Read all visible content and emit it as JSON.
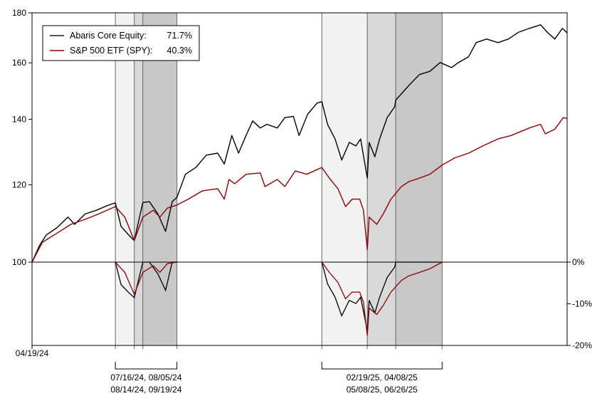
{
  "chart_data": {
    "type": "line",
    "y_scale": "log",
    "ylim": [
      100,
      180
    ],
    "yticks": [
      "100",
      "120",
      "140",
      "160",
      "180"
    ],
    "ytick_values": [
      100,
      120,
      140,
      160,
      180
    ],
    "y2lim": [
      -20,
      0
    ],
    "y2ticks": [
      "0%",
      "-10%",
      "-20%"
    ],
    "y2tick_values": [
      0,
      -10,
      -20
    ],
    "xlim": [
      "2024-04-19",
      "2025-11-05"
    ],
    "xtick_label": "04/19/24",
    "legend_placement": "top-left",
    "legend": [
      {
        "name": "Abaris Core Equity:",
        "value": "71.7%",
        "color": "#000000"
      },
      {
        "name": "S&P 500 ETF (SPY):",
        "value": "40.3%",
        "color": "#8b0000"
      }
    ],
    "periods": [
      {
        "dates": [
          "2024-07-16",
          "2024-08-05",
          "2024-08-14",
          "2024-09-19"
        ],
        "label_line1": "07/16/24, 08/05/24",
        "label_line2": "08/14/24, 09/19/24"
      },
      {
        "dates": [
          "2025-02-19",
          "2025-04-08",
          "2025-05-08",
          "2025-06-26"
        ],
        "label_line1": "02/19/25, 04/08/25",
        "label_line2": "05/08/25, 06/26/25"
      }
    ],
    "shade_colors": [
      "#f2f2f2",
      "#d9d9d9",
      "#c8c8c8"
    ],
    "series": [
      {
        "name": "Abaris Core Equity",
        "color": "#000000",
        "points": [
          [
            "2024-04-19",
            100
          ],
          [
            "2024-04-27",
            104
          ],
          [
            "2024-05-04",
            106.6
          ],
          [
            "2024-05-15",
            108.4
          ],
          [
            "2024-05-27",
            111.2
          ],
          [
            "2024-06-03",
            109.3
          ],
          [
            "2024-06-14",
            112
          ],
          [
            "2024-06-26",
            113
          ],
          [
            "2024-07-07",
            114.2
          ],
          [
            "2024-07-16",
            115
          ],
          [
            "2024-07-22",
            108.8
          ],
          [
            "2024-07-30",
            106.6
          ],
          [
            "2024-08-05",
            105.2
          ],
          [
            "2024-08-14",
            115.1
          ],
          [
            "2024-08-21",
            115.3
          ],
          [
            "2024-08-30",
            112
          ],
          [
            "2024-09-07",
            107.5
          ],
          [
            "2024-09-14",
            115.3
          ],
          [
            "2024-09-19",
            116.5
          ],
          [
            "2024-09-28",
            123
          ],
          [
            "2024-10-09",
            125
          ],
          [
            "2024-10-20",
            128.7
          ],
          [
            "2024-11-01",
            129.3
          ],
          [
            "2024-11-08",
            126
          ],
          [
            "2024-11-16",
            134.8
          ],
          [
            "2024-11-23",
            129.3
          ],
          [
            "2024-12-01",
            134.8
          ],
          [
            "2024-12-08",
            139.5
          ],
          [
            "2024-12-16",
            137.2
          ],
          [
            "2024-12-23",
            138.4
          ],
          [
            "2025-01-03",
            137.2
          ],
          [
            "2025-01-11",
            140.6
          ],
          [
            "2025-01-20",
            141
          ],
          [
            "2025-01-26",
            134.8
          ],
          [
            "2025-02-04",
            141.7
          ],
          [
            "2025-02-14",
            145.5
          ],
          [
            "2025-02-19",
            146
          ],
          [
            "2025-02-25",
            138.4
          ],
          [
            "2025-03-05",
            133.7
          ],
          [
            "2025-03-12",
            127.2
          ],
          [
            "2025-03-20",
            132.6
          ],
          [
            "2025-03-27",
            131.5
          ],
          [
            "2025-04-01",
            133.7
          ],
          [
            "2025-04-08",
            121.9
          ],
          [
            "2025-04-10",
            132.6
          ],
          [
            "2025-04-16",
            128.2
          ],
          [
            "2025-04-21",
            133.7
          ],
          [
            "2025-04-29",
            140.6
          ],
          [
            "2025-05-07",
            144.3
          ],
          [
            "2025-05-08",
            146.5
          ],
          [
            "2025-05-22",
            151.7
          ],
          [
            "2025-06-02",
            155.6
          ],
          [
            "2025-06-13",
            156.8
          ],
          [
            "2025-06-24",
            160.1
          ],
          [
            "2025-07-06",
            158.2
          ],
          [
            "2025-07-13",
            160
          ],
          [
            "2025-07-24",
            162.3
          ],
          [
            "2025-08-01",
            167.8
          ],
          [
            "2025-08-12",
            169.2
          ],
          [
            "2025-08-24",
            167.8
          ],
          [
            "2025-09-04",
            169.2
          ],
          [
            "2025-09-15",
            172
          ],
          [
            "2025-09-26",
            173.5
          ],
          [
            "2025-10-08",
            175
          ],
          [
            "2025-10-15",
            172
          ],
          [
            "2025-10-23",
            169.2
          ],
          [
            "2025-10-31",
            173.5
          ],
          [
            "2025-11-05",
            171.7
          ]
        ]
      },
      {
        "name": "S&P 500 ETF (SPY)",
        "color": "#8b0000",
        "points": [
          [
            "2024-04-19",
            100
          ],
          [
            "2024-04-30",
            104.8
          ],
          [
            "2024-05-15",
            107
          ],
          [
            "2024-05-30",
            109.3
          ],
          [
            "2024-06-14",
            110.6
          ],
          [
            "2024-06-29",
            112.1
          ],
          [
            "2024-07-16",
            114
          ],
          [
            "2024-07-26",
            111.2
          ],
          [
            "2024-08-05",
            105.2
          ],
          [
            "2024-08-14",
            111.2
          ],
          [
            "2024-08-25",
            113
          ],
          [
            "2024-09-01",
            111.2
          ],
          [
            "2024-09-09",
            113.6
          ],
          [
            "2024-09-19",
            114.4
          ],
          [
            "2024-10-01",
            116
          ],
          [
            "2024-10-16",
            118.3
          ],
          [
            "2024-11-01",
            118.9
          ],
          [
            "2024-11-08",
            116
          ],
          [
            "2024-11-13",
            121.5
          ],
          [
            "2024-11-19",
            120.3
          ],
          [
            "2024-12-01",
            123
          ],
          [
            "2024-12-16",
            123.4
          ],
          [
            "2024-12-21",
            119.5
          ],
          [
            "2025-01-03",
            121.5
          ],
          [
            "2025-01-11",
            119.5
          ],
          [
            "2025-01-22",
            124
          ],
          [
            "2025-02-03",
            123
          ],
          [
            "2025-02-19",
            125
          ],
          [
            "2025-02-27",
            121.9
          ],
          [
            "2025-03-08",
            118.9
          ],
          [
            "2025-03-16",
            114
          ],
          [
            "2025-03-23",
            116
          ],
          [
            "2025-03-31",
            116
          ],
          [
            "2025-04-04",
            113
          ],
          [
            "2025-04-08",
            103
          ],
          [
            "2025-04-10",
            111.2
          ],
          [
            "2025-04-18",
            109.3
          ],
          [
            "2025-04-25",
            112.1
          ],
          [
            "2025-05-03",
            116
          ],
          [
            "2025-05-14",
            119.5
          ],
          [
            "2025-05-22",
            120.9
          ],
          [
            "2025-06-02",
            121.9
          ],
          [
            "2025-06-13",
            123
          ],
          [
            "2025-06-26",
            125.7
          ],
          [
            "2025-07-09",
            127.8
          ],
          [
            "2025-07-24",
            129.3
          ],
          [
            "2025-08-08",
            131.5
          ],
          [
            "2025-08-24",
            133.7
          ],
          [
            "2025-09-07",
            134.8
          ],
          [
            "2025-09-26",
            137.2
          ],
          [
            "2025-10-08",
            138.4
          ],
          [
            "2025-10-13",
            135.3
          ],
          [
            "2025-10-23",
            136.8
          ],
          [
            "2025-11-01",
            140.6
          ],
          [
            "2025-11-05",
            140.3
          ]
        ]
      }
    ]
  }
}
